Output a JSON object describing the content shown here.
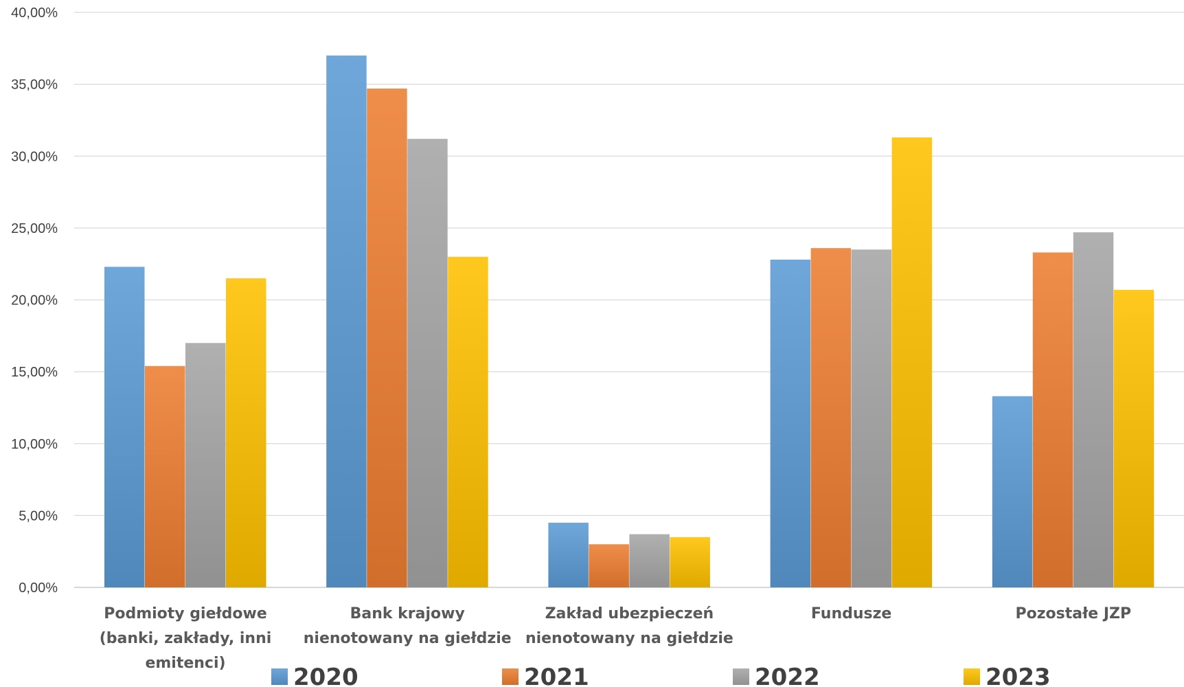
{
  "chart_data": {
    "type": "bar",
    "categories": [
      [
        "Podmioty giełdowe",
        "(banki, zakłady, inni",
        "emitenci)"
      ],
      [
        "Bank krajowy",
        "nienotowany na giełdzie"
      ],
      [
        "Zakład ubezpieczeń",
        "nienotowany na giełdzie"
      ],
      [
        "Fundusze"
      ],
      [
        "Pozostałe JZP"
      ]
    ],
    "series": [
      {
        "name": "2020",
        "values": [
          22.3,
          37.0,
          4.5,
          22.8,
          13.3
        ],
        "color": "#5b9bd5"
      },
      {
        "name": "2021",
        "values": [
          15.4,
          34.7,
          3.0,
          23.6,
          23.3
        ],
        "color": "#ed7d31"
      },
      {
        "name": "2022",
        "values": [
          17.0,
          31.2,
          3.7,
          23.5,
          24.7
        ],
        "color": "#a5a5a5"
      },
      {
        "name": "2023",
        "values": [
          21.5,
          23.0,
          3.5,
          31.3,
          20.7
        ],
        "color": "#ffc000"
      }
    ],
    "yticks": [
      "0,00%",
      "5,00%",
      "10,00%",
      "15,00%",
      "20,00%",
      "25,00%",
      "30,00%",
      "35,00%",
      "40,00%"
    ],
    "ylim": [
      0,
      40
    ],
    "grid": true,
    "legend_position": "bottom"
  }
}
